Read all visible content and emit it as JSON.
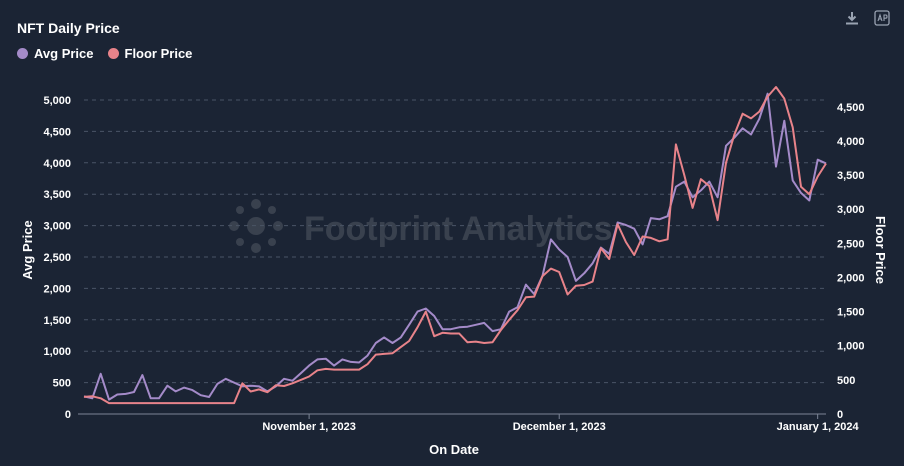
{
  "header": {
    "title": "NFT Daily Price"
  },
  "legend": [
    {
      "name": "Avg Price",
      "color": "#a48bc9"
    },
    {
      "name": "Floor Price",
      "color": "#e8838a"
    }
  ],
  "toolbar": {
    "icons": [
      "download-icon",
      "api-icon"
    ]
  },
  "watermark": "Footprint Analytics",
  "chart_data": {
    "type": "line",
    "title": "NFT Daily Price",
    "xlabel": "On Date",
    "ylabel": "Avg Price",
    "y2label": "Floor Price",
    "x_ticks": [
      "November 1, 2023",
      "December 1, 2023",
      "January 1, 2024"
    ],
    "x_range": [
      "2023-10-05",
      "2024-01-02"
    ],
    "ylim": [
      0,
      5000
    ],
    "y_ticks": [
      "0",
      "500",
      "1,000",
      "1,500",
      "2,000",
      "2,500",
      "3,000",
      "3,500",
      "4,000",
      "4,500",
      "5,000"
    ],
    "y2lim": [
      0,
      4600
    ],
    "y2_ticks": [
      "0",
      "500",
      "1,000",
      "1,500",
      "2,000",
      "2,500",
      "3,000",
      "3,500",
      "4,000",
      "4,500"
    ],
    "grid": true,
    "legend_position": "top-left",
    "series": [
      {
        "name": "Avg Price",
        "axis": "left",
        "color": "#a48bc9",
        "points": [
          [
            "2023-10-05",
            280
          ],
          [
            "2023-10-06",
            250
          ],
          [
            "2023-10-07",
            640
          ],
          [
            "2023-10-08",
            230
          ],
          [
            "2023-10-09",
            310
          ],
          [
            "2023-10-10",
            320
          ],
          [
            "2023-10-11",
            350
          ],
          [
            "2023-10-12",
            620
          ],
          [
            "2023-10-13",
            250
          ],
          [
            "2023-10-14",
            250
          ],
          [
            "2023-10-15",
            450
          ],
          [
            "2023-10-16",
            360
          ],
          [
            "2023-10-17",
            420
          ],
          [
            "2023-10-18",
            380
          ],
          [
            "2023-10-19",
            300
          ],
          [
            "2023-10-20",
            270
          ],
          [
            "2023-10-21",
            480
          ],
          [
            "2023-10-22",
            560
          ],
          [
            "2023-10-23",
            500
          ],
          [
            "2023-10-24",
            440
          ],
          [
            "2023-10-25",
            450
          ],
          [
            "2023-10-26",
            440
          ],
          [
            "2023-10-27",
            360
          ],
          [
            "2023-10-28",
            440
          ],
          [
            "2023-10-29",
            560
          ],
          [
            "2023-10-30",
            530
          ],
          [
            "2023-10-31",
            650
          ],
          [
            "2023-11-01",
            770
          ],
          [
            "2023-11-02",
            870
          ],
          [
            "2023-11-03",
            880
          ],
          [
            "2023-11-04",
            770
          ],
          [
            "2023-11-05",
            870
          ],
          [
            "2023-11-06",
            830
          ],
          [
            "2023-11-07",
            820
          ],
          [
            "2023-11-08",
            930
          ],
          [
            "2023-11-09",
            1130
          ],
          [
            "2023-11-10",
            1220
          ],
          [
            "2023-11-11",
            1130
          ],
          [
            "2023-11-12",
            1220
          ],
          [
            "2023-11-13",
            1420
          ],
          [
            "2023-11-14",
            1630
          ],
          [
            "2023-11-15",
            1680
          ],
          [
            "2023-11-16",
            1560
          ],
          [
            "2023-11-17",
            1350
          ],
          [
            "2023-11-18",
            1350
          ],
          [
            "2023-11-19",
            1380
          ],
          [
            "2023-11-20",
            1390
          ],
          [
            "2023-11-21",
            1420
          ],
          [
            "2023-11-22",
            1450
          ],
          [
            "2023-11-23",
            1320
          ],
          [
            "2023-11-24",
            1350
          ],
          [
            "2023-11-25",
            1630
          ],
          [
            "2023-11-26",
            1700
          ],
          [
            "2023-11-27",
            2060
          ],
          [
            "2023-11-28",
            1910
          ],
          [
            "2023-11-29",
            2200
          ],
          [
            "2023-11-30",
            2780
          ],
          [
            "2023-12-01",
            2620
          ],
          [
            "2023-12-02",
            2500
          ],
          [
            "2023-12-03",
            2120
          ],
          [
            "2023-12-04",
            2240
          ],
          [
            "2023-12-05",
            2400
          ],
          [
            "2023-12-06",
            2650
          ],
          [
            "2023-12-07",
            2550
          ],
          [
            "2023-12-08",
            3050
          ],
          [
            "2023-12-09",
            3010
          ],
          [
            "2023-12-10",
            2950
          ],
          [
            "2023-12-11",
            2700
          ],
          [
            "2023-12-12",
            3120
          ],
          [
            "2023-12-13",
            3100
          ],
          [
            "2023-12-14",
            3150
          ],
          [
            "2023-12-15",
            3620
          ],
          [
            "2023-12-16",
            3700
          ],
          [
            "2023-12-17",
            3450
          ],
          [
            "2023-12-18",
            3560
          ],
          [
            "2023-12-19",
            3700
          ],
          [
            "2023-12-20",
            3450
          ],
          [
            "2023-12-21",
            4270
          ],
          [
            "2023-12-22",
            4400
          ],
          [
            "2023-12-23",
            4550
          ],
          [
            "2023-12-24",
            4450
          ],
          [
            "2023-12-25",
            4700
          ],
          [
            "2023-12-26",
            5100
          ],
          [
            "2023-12-27",
            3940
          ],
          [
            "2023-12-28",
            4670
          ],
          [
            "2023-12-29",
            3720
          ],
          [
            "2023-12-30",
            3520
          ],
          [
            "2023-12-31",
            3400
          ],
          [
            "2024-01-01",
            4050
          ],
          [
            "2024-01-02",
            3990
          ]
        ]
      },
      {
        "name": "Floor Price",
        "axis": "right",
        "color": "#e8838a",
        "points": [
          [
            "2023-10-05",
            250
          ],
          [
            "2023-10-06",
            260
          ],
          [
            "2023-10-07",
            230
          ],
          [
            "2023-10-08",
            160
          ],
          [
            "2023-10-09",
            160
          ],
          [
            "2023-10-10",
            160
          ],
          [
            "2023-10-11",
            160
          ],
          [
            "2023-10-12",
            160
          ],
          [
            "2023-10-13",
            160
          ],
          [
            "2023-10-14",
            160
          ],
          [
            "2023-10-15",
            160
          ],
          [
            "2023-10-16",
            160
          ],
          [
            "2023-10-17",
            160
          ],
          [
            "2023-10-18",
            160
          ],
          [
            "2023-10-19",
            160
          ],
          [
            "2023-10-20",
            160
          ],
          [
            "2023-10-21",
            160
          ],
          [
            "2023-10-22",
            160
          ],
          [
            "2023-10-23",
            160
          ],
          [
            "2023-10-24",
            450
          ],
          [
            "2023-10-25",
            330
          ],
          [
            "2023-10-26",
            360
          ],
          [
            "2023-10-27",
            320
          ],
          [
            "2023-10-28",
            420
          ],
          [
            "2023-10-29",
            410
          ],
          [
            "2023-10-30",
            450
          ],
          [
            "2023-10-31",
            500
          ],
          [
            "2023-11-01",
            550
          ],
          [
            "2023-11-02",
            640
          ],
          [
            "2023-11-03",
            660
          ],
          [
            "2023-11-04",
            650
          ],
          [
            "2023-11-05",
            650
          ],
          [
            "2023-11-06",
            650
          ],
          [
            "2023-11-07",
            650
          ],
          [
            "2023-11-08",
            730
          ],
          [
            "2023-11-09",
            870
          ],
          [
            "2023-11-10",
            880
          ],
          [
            "2023-11-11",
            890
          ],
          [
            "2023-11-12",
            980
          ],
          [
            "2023-11-13",
            1070
          ],
          [
            "2023-11-14",
            1270
          ],
          [
            "2023-11-15",
            1500
          ],
          [
            "2023-11-16",
            1140
          ],
          [
            "2023-11-17",
            1190
          ],
          [
            "2023-11-18",
            1180
          ],
          [
            "2023-11-19",
            1180
          ],
          [
            "2023-11-20",
            1050
          ],
          [
            "2023-11-21",
            1060
          ],
          [
            "2023-11-22",
            1040
          ],
          [
            "2023-11-23",
            1050
          ],
          [
            "2023-11-24",
            1230
          ],
          [
            "2023-11-25",
            1380
          ],
          [
            "2023-11-26",
            1520
          ],
          [
            "2023-11-27",
            1710
          ],
          [
            "2023-11-28",
            1720
          ],
          [
            "2023-11-29",
            2020
          ],
          [
            "2023-11-30",
            2130
          ],
          [
            "2023-12-01",
            2080
          ],
          [
            "2023-12-02",
            1750
          ],
          [
            "2023-12-03",
            1880
          ],
          [
            "2023-12-04",
            1890
          ],
          [
            "2023-12-05",
            1940
          ],
          [
            "2023-12-06",
            2430
          ],
          [
            "2023-12-07",
            2270
          ],
          [
            "2023-12-08",
            2780
          ],
          [
            "2023-12-09",
            2520
          ],
          [
            "2023-12-10",
            2330
          ],
          [
            "2023-12-11",
            2600
          ],
          [
            "2023-12-12",
            2580
          ],
          [
            "2023-12-13",
            2530
          ],
          [
            "2023-12-14",
            2560
          ],
          [
            "2023-12-15",
            3950
          ],
          [
            "2023-12-16",
            3500
          ],
          [
            "2023-12-17",
            3020
          ],
          [
            "2023-12-18",
            3440
          ],
          [
            "2023-12-19",
            3340
          ],
          [
            "2023-12-20",
            2840
          ],
          [
            "2023-12-21",
            3680
          ],
          [
            "2023-12-22",
            4090
          ],
          [
            "2023-12-23",
            4400
          ],
          [
            "2023-12-24",
            4330
          ],
          [
            "2023-12-25",
            4430
          ],
          [
            "2023-12-26",
            4650
          ],
          [
            "2023-12-27",
            4790
          ],
          [
            "2023-12-28",
            4620
          ],
          [
            "2023-12-29",
            4200
          ],
          [
            "2023-12-30",
            3330
          ],
          [
            "2023-12-31",
            3220
          ],
          [
            "2024-01-01",
            3480
          ],
          [
            "2024-01-02",
            3670
          ]
        ]
      }
    ]
  }
}
